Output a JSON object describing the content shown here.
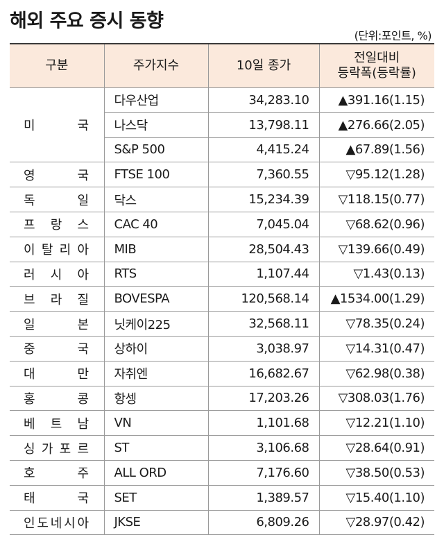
{
  "title": "해외 주요 증시 동향",
  "unit": "(단위:포인트, %)",
  "headers": {
    "col1": "구분",
    "col2": "주가지수",
    "col3": "10일 종가",
    "col4_line1": "전일대비",
    "col4_line2": "등락폭(등락률)"
  },
  "rows": [
    {
      "country": "미국",
      "index": "다우산업",
      "close": "34,283.10",
      "change": "▲391.16(1.15)"
    },
    {
      "country": "",
      "index": "나스닥",
      "close": "13,798.11",
      "change": "▲276.66(2.05)"
    },
    {
      "country": "",
      "index": "S&P 500",
      "close": "4,415.24",
      "change": "▲67.89(1.56)"
    },
    {
      "country": "영국",
      "index": "FTSE 100",
      "close": "7,360.55",
      "change": "▽95.12(1.28)"
    },
    {
      "country": "독일",
      "index": "닥스",
      "close": "15,234.39",
      "change": "▽118.15(0.77)"
    },
    {
      "country": "프랑스",
      "index": "CAC 40",
      "close": "7,045.04",
      "change": "▽68.62(0.96)"
    },
    {
      "country": "이탈리아",
      "index": "MIB",
      "close": "28,504.43",
      "change": "▽139.66(0.49)"
    },
    {
      "country": "러시아",
      "index": "RTS",
      "close": "1,107.44",
      "change": "▽1.43(0.13)"
    },
    {
      "country": "브라질",
      "index": "BOVESPA",
      "close": "120,568.14",
      "change": "▲1534.00(1.29)"
    },
    {
      "country": "일본",
      "index": "닛케이225",
      "close": "32,568.11",
      "change": "▽78.35(0.24)"
    },
    {
      "country": "중국",
      "index": "상하이",
      "close": "3,038.97",
      "change": "▽14.31(0.47)"
    },
    {
      "country": "대만",
      "index": "자취엔",
      "close": "16,682.67",
      "change": "▽62.98(0.38)"
    },
    {
      "country": "홍콩",
      "index": "항셍",
      "close": "17,203.26",
      "change": "▽308.03(1.76)"
    },
    {
      "country": "베트남",
      "index": "VN",
      "close": "1,101.68",
      "change": "▽12.21(1.10)"
    },
    {
      "country": "싱가포르",
      "index": "ST",
      "close": "3,106.68",
      "change": "▽28.64(0.91)"
    },
    {
      "country": "호주",
      "index": "ALL ORD",
      "close": "7,176.60",
      "change": "▽38.50(0.53)"
    },
    {
      "country": "태국",
      "index": "SET",
      "close": "1,389.57",
      "change": "▽15.40(1.10)"
    },
    {
      "country": "인도네시아",
      "index": "JKSE",
      "close": "6,809.26",
      "change": "▽28.97(0.42)"
    }
  ]
}
